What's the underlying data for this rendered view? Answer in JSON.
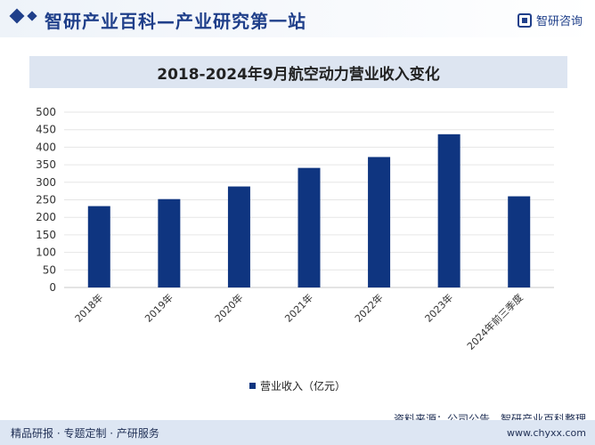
{
  "header": {
    "title": "智研产业百科—产业研究第一站",
    "brand": "智研咨询"
  },
  "chart_data": {
    "type": "bar",
    "title": "2018-2024年9月航空动力营业收入变化",
    "categories": [
      "2018年",
      "2019年",
      "2020年",
      "2021年",
      "2022年",
      "2023年",
      "2024年前三季度"
    ],
    "series": [
      {
        "name": "营业收入（亿元）",
        "values": [
          232,
          252,
          288,
          341,
          372,
          437,
          260
        ],
        "color": "#0f3580"
      }
    ],
    "ylim": [
      0,
      500
    ],
    "yticks": [
      0,
      50,
      100,
      150,
      200,
      250,
      300,
      350,
      400,
      450,
      500
    ],
    "grid": true,
    "legend_position": "bottom"
  },
  "footer": {
    "left": "精品研报 · 专题定制 · 产研服务",
    "source": "资料来源：公司公告、智研产业百科整理",
    "url": "www.chyxx.com"
  }
}
